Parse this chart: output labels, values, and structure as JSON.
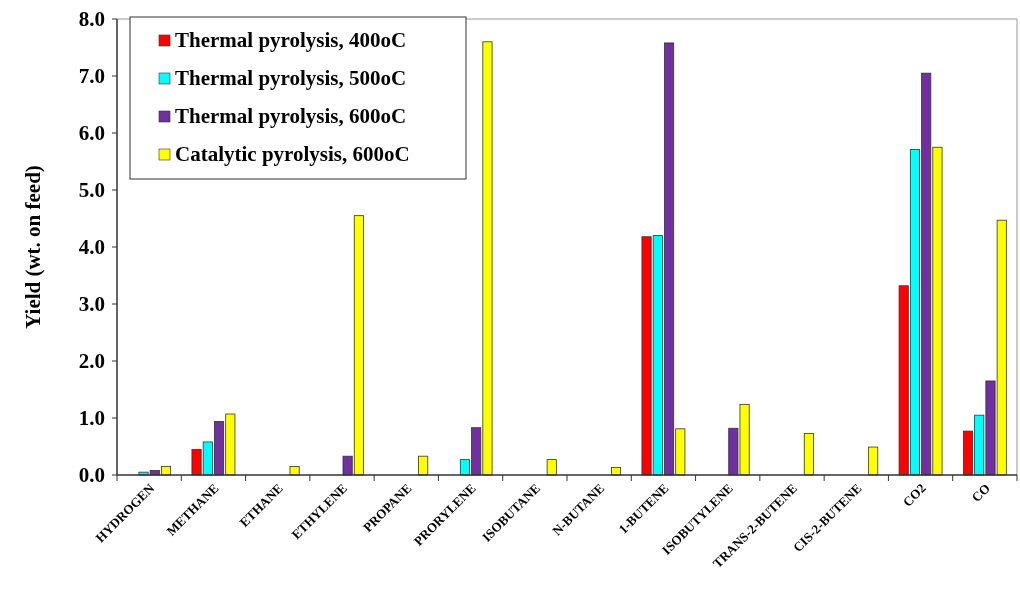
{
  "chart_data": {
    "type": "bar",
    "ylabel": "Yield (wt. on feed)",
    "categories": [
      "HYDROGEN",
      "METHANE",
      "ETHANE",
      "ETHYLENE",
      "PROPANE",
      "PRORYLENE",
      "ISOBUTANE",
      "N-BUTANE",
      "1-BUTENE",
      "ISOBUTYLENE",
      "TRANS-2-BUTENE",
      "CIS-2-BUTENE",
      "CO2",
      "CO"
    ],
    "series": [
      {
        "name": "Thermal pyrolysis, 400oC",
        "color": "#ff0000",
        "values": [
          0,
          0.45,
          0,
          0,
          0,
          0,
          0,
          0,
          4.18,
          0,
          0,
          0,
          3.32,
          0.77
        ]
      },
      {
        "name": "Thermal pyrolysis, 500oC",
        "color": "#00ffff",
        "values": [
          0.05,
          0.58,
          0,
          0,
          0,
          0.27,
          0,
          0,
          4.2,
          0,
          0,
          0,
          5.71,
          1.05
        ]
      },
      {
        "name": "Thermal pyrolysis, 600oC",
        "color": "#7030a0",
        "values": [
          0.08,
          0.94,
          0,
          0.33,
          0,
          0.83,
          0,
          0,
          7.58,
          0.82,
          0,
          0,
          7.05,
          1.65
        ]
      },
      {
        "name": "Catalytic pyrolysis, 600oC",
        "color": "#ffff00",
        "values": [
          0.15,
          1.07,
          0.15,
          4.55,
          0.33,
          7.6,
          0.27,
          0.13,
          0.81,
          1.24,
          0.73,
          0.49,
          5.75,
          4.47
        ]
      }
    ],
    "ylim": [
      0,
      8
    ],
    "yticks": [
      {
        "value": 0,
        "label": "0.0"
      },
      {
        "value": 1,
        "label": "1.0"
      },
      {
        "value": 2,
        "label": "2.0"
      },
      {
        "value": 3,
        "label": "3.0"
      },
      {
        "value": 4,
        "label": "4.0"
      },
      {
        "value": 5,
        "label": "5.0"
      },
      {
        "value": 6,
        "label": "6.0"
      },
      {
        "value": 7,
        "label": "7.0"
      },
      {
        "value": 8,
        "label": "8.0"
      }
    ],
    "legend": "top left"
  }
}
